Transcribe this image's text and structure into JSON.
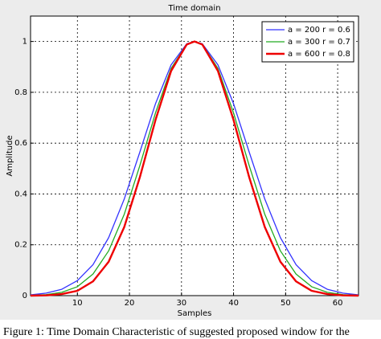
{
  "chart_data": {
    "type": "line",
    "title": "Time domain",
    "xlabel": "Samples",
    "ylabel": "Amplitude",
    "x": [
      1,
      4,
      7,
      10,
      13,
      16,
      19,
      22,
      25,
      28,
      31,
      32.5,
      34,
      37,
      40,
      43,
      46,
      49,
      52,
      55,
      58,
      61,
      64
    ],
    "series": [
      {
        "name": "a = 200  r = 0.6",
        "color": "#3333ff",
        "width": 1.3,
        "values": [
          0.003,
          0.01,
          0.025,
          0.059,
          0.122,
          0.228,
          0.38,
          0.565,
          0.755,
          0.908,
          0.991,
          1,
          0.991,
          0.908,
          0.755,
          0.565,
          0.38,
          0.228,
          0.122,
          0.059,
          0.025,
          0.01,
          0.003
        ]
      },
      {
        "name": "a = 300  r = 0.7",
        "color": "#22aa22",
        "width": 1.3,
        "values": [
          0.001,
          0.004,
          0.013,
          0.035,
          0.085,
          0.176,
          0.32,
          0.512,
          0.719,
          0.894,
          0.989,
          1,
          0.989,
          0.894,
          0.719,
          0.512,
          0.32,
          0.176,
          0.085,
          0.035,
          0.013,
          0.004,
          0.001
        ]
      },
      {
        "name": "a = 600  r = 0.8",
        "color": "#ee0000",
        "width": 2.4,
        "values": [
          0.0,
          0.001,
          0.006,
          0.019,
          0.056,
          0.133,
          0.27,
          0.466,
          0.691,
          0.884,
          0.988,
          1,
          0.988,
          0.884,
          0.691,
          0.466,
          0.27,
          0.133,
          0.056,
          0.019,
          0.006,
          0.001,
          0.0
        ]
      }
    ],
    "xlim": [
      1,
      64
    ],
    "xticks": [
      10,
      20,
      30,
      40,
      50,
      60
    ],
    "ylim": [
      0,
      1.1
    ],
    "yticks": [
      0,
      0.2,
      0.4,
      0.6,
      0.8,
      1
    ],
    "grid": true,
    "legend": "upper-right"
  },
  "caption": "Figure 1: Time Domain Characteristic of suggested proposed window for the"
}
